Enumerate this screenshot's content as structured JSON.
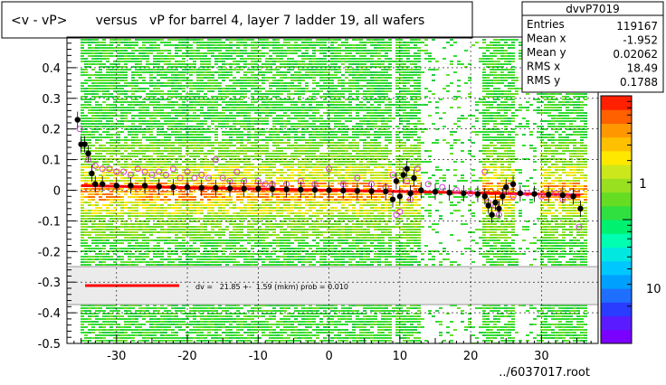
{
  "title": "<v - vP>       versus   vP for barrel 4, layer 7 ladder 19, all wafers",
  "footer": "../6037017.root",
  "stats": {
    "name": "dvvP7019",
    "rows": [
      {
        "label": "Entries",
        "value": "119167"
      },
      {
        "label": "Mean x",
        "value": "-1.952"
      },
      {
        "label": "Mean y",
        "value": "0.02062"
      },
      {
        "label": "RMS x",
        "value": "18.49"
      },
      {
        "label": "RMS y",
        "value": "0.1788"
      }
    ]
  },
  "legend": {
    "fit_text": "dv =   21.85 +-  1.59 (mkm) prob = 0.010",
    "line_color": "#ff0000"
  },
  "colorbar": {
    "labels": [
      {
        "text": "1",
        "value": 1
      },
      {
        "text": "10",
        "value": 10
      }
    ],
    "colors": [
      "#7a00ff",
      "#5a1cff",
      "#2a3cff",
      "#1f6fff",
      "#00a0ff",
      "#00c8ff",
      "#00e8e0",
      "#00ffb0",
      "#00f070",
      "#30e040",
      "#66dd22",
      "#99e020",
      "#cce81c",
      "#ffe800",
      "#ffc000",
      "#ff9800",
      "#ff6000",
      "#ff2000"
    ]
  },
  "chart_data": {
    "type": "heatmap",
    "xlim": [
      -37,
      38
    ],
    "ylim": [
      -0.5,
      0.5
    ],
    "xticks": [
      -30,
      -20,
      -10,
      0,
      10,
      20,
      30
    ],
    "yticks": [
      -0.5,
      -0.4,
      -0.3,
      -0.2,
      -0.1,
      0,
      0.1,
      0.2,
      0.3,
      0.4
    ],
    "gap_x_ranges": [
      [
        -31.5,
        -31
      ],
      [
        8.5,
        9.2
      ],
      [
        12.8,
        21.5
      ],
      [
        25.8,
        29.5
      ]
    ],
    "black_points": [
      {
        "x": -35.5,
        "y": 0.23
      },
      {
        "x": -35,
        "y": 0.15
      },
      {
        "x": -34.5,
        "y": 0.15
      },
      {
        "x": -34,
        "y": 0.12
      },
      {
        "x": -33.5,
        "y": 0.055
      },
      {
        "x": -33,
        "y": 0.02
      },
      {
        "x": -32,
        "y": 0.02
      },
      {
        "x": -30,
        "y": 0.015
      },
      {
        "x": -28,
        "y": 0.015
      },
      {
        "x": -26,
        "y": 0.015
      },
      {
        "x": -24,
        "y": 0.012
      },
      {
        "x": -22,
        "y": 0.01
      },
      {
        "x": -20,
        "y": 0.01
      },
      {
        "x": -18,
        "y": 0.008
      },
      {
        "x": -16,
        "y": 0.008
      },
      {
        "x": -14,
        "y": 0.006
      },
      {
        "x": -12,
        "y": 0.005
      },
      {
        "x": -10,
        "y": 0.005
      },
      {
        "x": -8,
        "y": 0.004
      },
      {
        "x": -6,
        "y": 0.003
      },
      {
        "x": -4,
        "y": 0.002
      },
      {
        "x": -2,
        "y": 0.001
      },
      {
        "x": 0,
        "y": 0.0
      },
      {
        "x": 2,
        "y": -0.001
      },
      {
        "x": 4,
        "y": -0.002
      },
      {
        "x": 6,
        "y": -0.003
      },
      {
        "x": 8,
        "y": -0.004
      },
      {
        "x": 9,
        "y": -0.03
      },
      {
        "x": 9.5,
        "y": 0.03
      },
      {
        "x": 10,
        "y": -0.02
      },
      {
        "x": 10.5,
        "y": 0.05
      },
      {
        "x": 11,
        "y": 0.07
      },
      {
        "x": 11.5,
        "y": -0.01
      },
      {
        "x": 12,
        "y": 0.04
      },
      {
        "x": 13,
        "y": 0.0
      },
      {
        "x": 15,
        "y": -0.005
      },
      {
        "x": 17,
        "y": -0.008
      },
      {
        "x": 19,
        "y": -0.01
      },
      {
        "x": 21,
        "y": -0.012
      },
      {
        "x": 22,
        "y": -0.02
      },
      {
        "x": 22.5,
        "y": -0.05
      },
      {
        "x": 23,
        "y": -0.08
      },
      {
        "x": 23.5,
        "y": -0.04
      },
      {
        "x": 24,
        "y": -0.06
      },
      {
        "x": 24.5,
        "y": -0.02
      },
      {
        "x": 25,
        "y": 0.01
      },
      {
        "x": 26,
        "y": 0.02
      },
      {
        "x": 27,
        "y": -0.01
      },
      {
        "x": 29,
        "y": -0.012
      },
      {
        "x": 31,
        "y": -0.014
      },
      {
        "x": 33,
        "y": -0.016
      },
      {
        "x": 34.5,
        "y": -0.02
      },
      {
        "x": 35.5,
        "y": -0.06
      }
    ],
    "open_points": [
      {
        "x": -35.2,
        "y": 0.2
      },
      {
        "x": -34,
        "y": 0.1
      },
      {
        "x": -33,
        "y": 0.08
      },
      {
        "x": -32,
        "y": 0.07
      },
      {
        "x": -31,
        "y": 0.07
      },
      {
        "x": -30,
        "y": 0.06
      },
      {
        "x": -29,
        "y": 0.06
      },
      {
        "x": -28,
        "y": 0.05
      },
      {
        "x": -27,
        "y": 0.07
      },
      {
        "x": -26,
        "y": 0.06
      },
      {
        "x": -25,
        "y": 0.05
      },
      {
        "x": -24,
        "y": 0.06
      },
      {
        "x": -23,
        "y": 0.05
      },
      {
        "x": -22,
        "y": 0.07
      },
      {
        "x": -21,
        "y": 0.04
      },
      {
        "x": -20,
        "y": 0.06
      },
      {
        "x": -19,
        "y": 0.04
      },
      {
        "x": -18,
        "y": 0.05
      },
      {
        "x": -17,
        "y": 0.04
      },
      {
        "x": -16,
        "y": 0.1
      },
      {
        "x": -15,
        "y": 0.04
      },
      {
        "x": -14,
        "y": 0.03
      },
      {
        "x": -13,
        "y": 0.06
      },
      {
        "x": -12,
        "y": 0.03
      },
      {
        "x": -10,
        "y": 0.03
      },
      {
        "x": -9,
        "y": 0.02
      },
      {
        "x": -8,
        "y": 0.02
      },
      {
        "x": -6,
        "y": 0.02
      },
      {
        "x": -4,
        "y": 0.03
      },
      {
        "x": -2,
        "y": 0.02
      },
      {
        "x": 0,
        "y": 0.07
      },
      {
        "x": 2,
        "y": 0.02
      },
      {
        "x": 4,
        "y": 0.04
      },
      {
        "x": 6,
        "y": 0.02
      },
      {
        "x": 8,
        "y": 0.01
      },
      {
        "x": 9,
        "y": 0.05
      },
      {
        "x": 9.5,
        "y": -0.08
      },
      {
        "x": 10,
        "y": -0.07
      },
      {
        "x": 11,
        "y": 0.03
      },
      {
        "x": 11.5,
        "y": -0.03
      },
      {
        "x": 12.5,
        "y": 0.07
      },
      {
        "x": 14,
        "y": 0.02
      },
      {
        "x": 16,
        "y": 0.01
      },
      {
        "x": 18,
        "y": 0.0
      },
      {
        "x": 20,
        "y": -0.01
      },
      {
        "x": 22,
        "y": 0.06
      },
      {
        "x": 22.5,
        "y": -0.04
      },
      {
        "x": 23.5,
        "y": -0.05
      },
      {
        "x": 24,
        "y": -0.08
      },
      {
        "x": 25,
        "y": 0.0
      },
      {
        "x": 26,
        "y": -0.02
      },
      {
        "x": 28,
        "y": -0.01
      },
      {
        "x": 30,
        "y": -0.02
      },
      {
        "x": 32,
        "y": -0.01
      },
      {
        "x": 33,
        "y": -0.03
      },
      {
        "x": 34,
        "y": -0.02
      },
      {
        "x": 35.3,
        "y": -0.12
      }
    ]
  }
}
